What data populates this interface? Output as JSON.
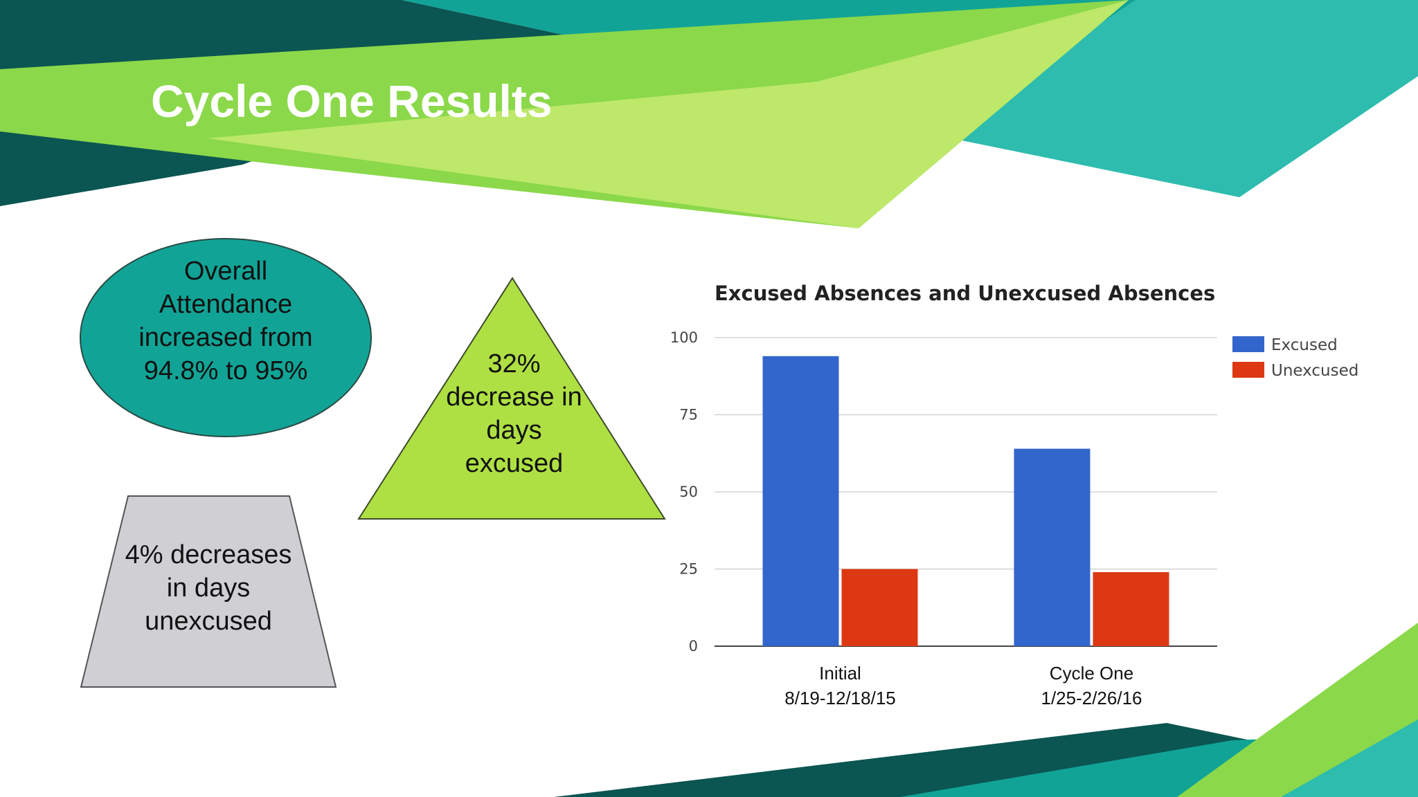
{
  "slide": {
    "title": "Cycle One Results",
    "accent_colors": {
      "dark_teal": "#0b5552",
      "teal": "#11a496",
      "light_teal": "#2dbcae",
      "green": "#8bd84a",
      "lime": "#bde86a"
    }
  },
  "callouts": {
    "attendance": "Overall Attendance increased from 94.8% to 95%",
    "excused_decrease": "32% decrease in days excused",
    "unexcused_decrease": "4% decreases in days unexcused"
  },
  "chart_data": {
    "type": "bar",
    "title": "Excused Absences and Unexcused Absences",
    "categories": [
      "Initial\n8/19-12/18/15",
      "Cycle One\n1/25-2/26/16"
    ],
    "series": [
      {
        "name": "Excused",
        "values": [
          94,
          64
        ],
        "color": "#3366cc"
      },
      {
        "name": "Unexcused",
        "values": [
          25,
          24
        ],
        "color": "#dc3912"
      }
    ],
    "ylim": [
      0,
      100
    ],
    "yticks": [
      0,
      25,
      50,
      75,
      100
    ],
    "grid": true,
    "legend": "right"
  }
}
